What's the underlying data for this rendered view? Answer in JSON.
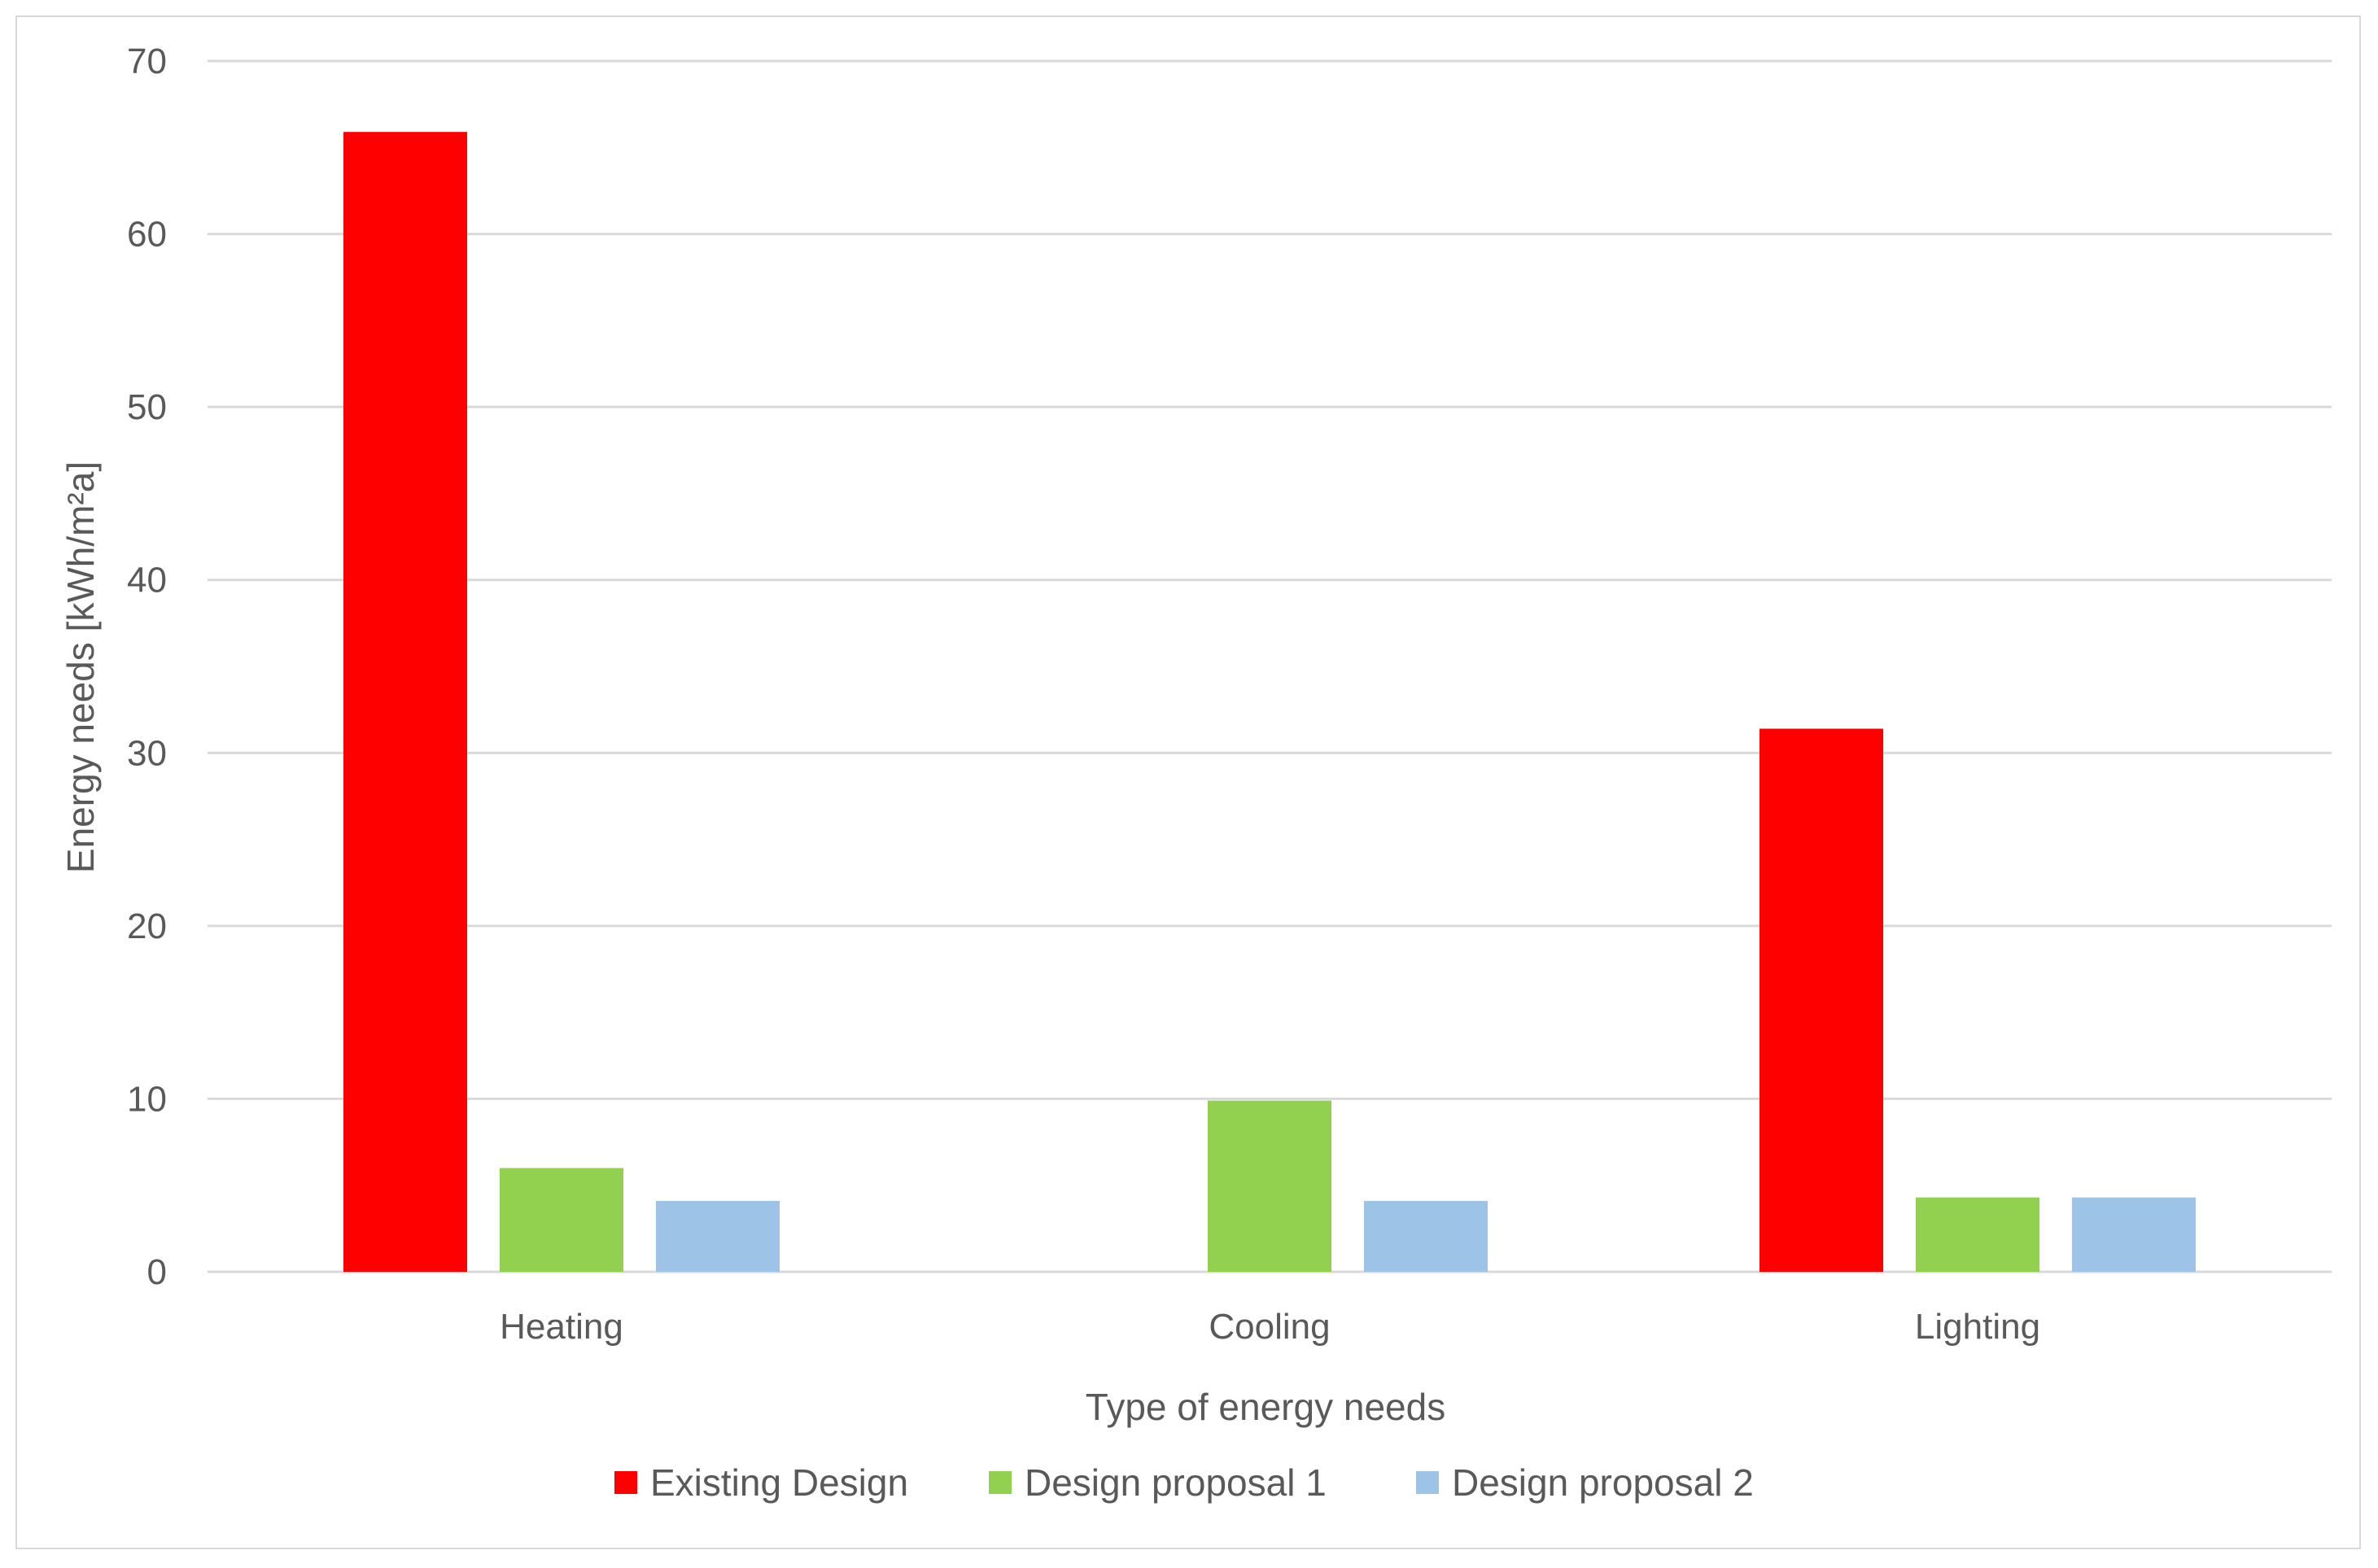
{
  "chart_data": {
    "type": "bar",
    "title": "",
    "xlabel": "Type of energy needs",
    "ylabel": "Energy needs [kWh/m²a]",
    "categories": [
      "Heating",
      "Cooling",
      "Lighting"
    ],
    "series": [
      {
        "name": "Existing Design",
        "color": "#ff0000",
        "values": [
          65.9,
          0,
          31.4
        ]
      },
      {
        "name": "Design proposal 1",
        "color": "#92d050",
        "values": [
          6.0,
          9.9,
          4.3
        ]
      },
      {
        "name": "Design proposal 2",
        "color": "#9dc3e6",
        "values": [
          4.1,
          4.1,
          4.3
        ]
      }
    ],
    "ylim": [
      0,
      70
    ],
    "yticks": [
      "0",
      "10",
      "20",
      "30",
      "40",
      "50",
      "60",
      "70"
    ],
    "grid": true,
    "legend_position": "bottom",
    "gridline_color": "#d9d9d9",
    "text_color": "#595959"
  }
}
